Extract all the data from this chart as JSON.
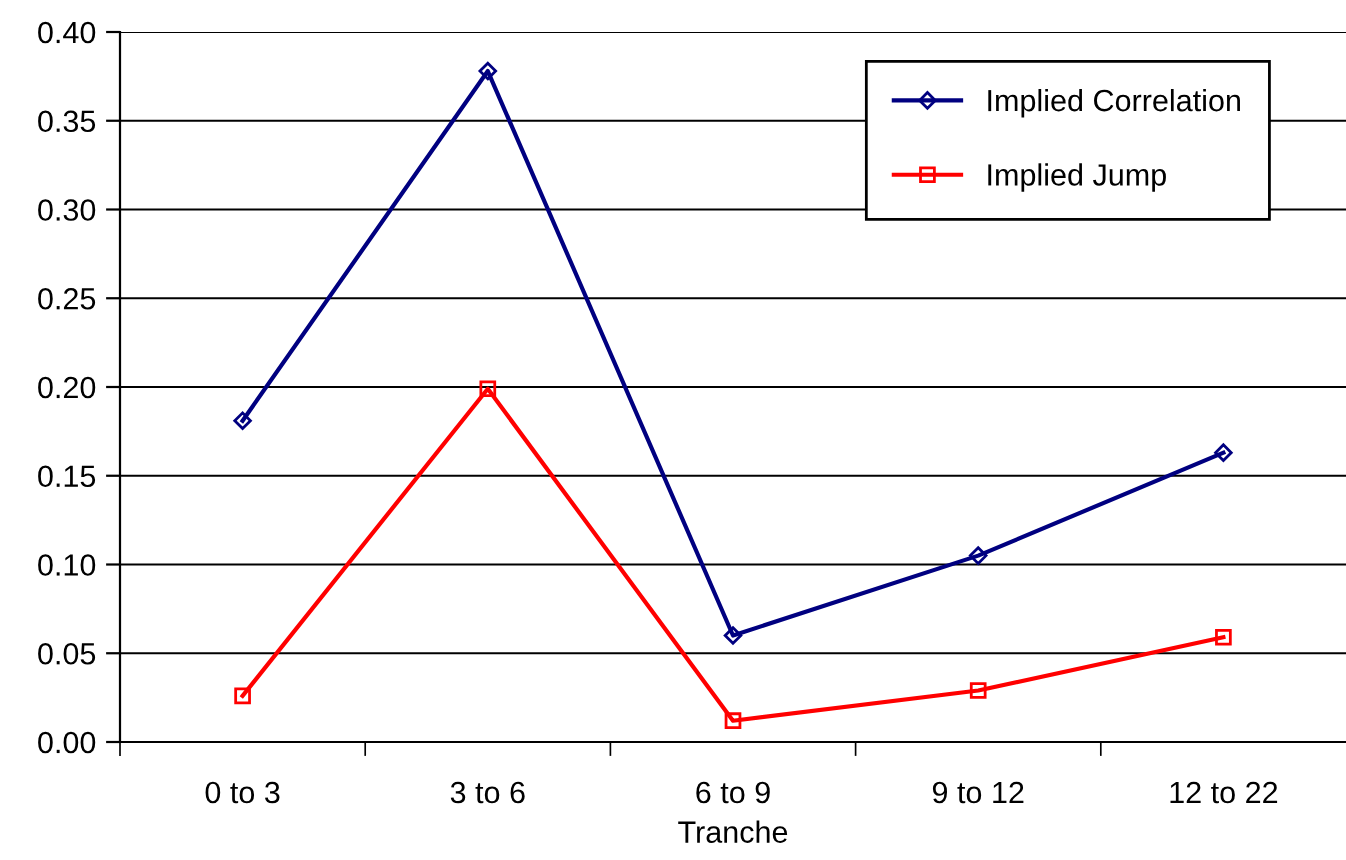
{
  "chart_data": {
    "type": "line",
    "xlabel": "Tranche",
    "categories": [
      "0 to 3",
      "3 to 6",
      "6 to 9",
      "9 to 12",
      "12 to 22"
    ],
    "series": [
      {
        "name": "Implied Correlation",
        "color": "#000080",
        "marker": "diamond",
        "values": [
          0.181,
          0.378,
          0.06,
          0.105,
          0.163
        ]
      },
      {
        "name": "Implied Jump",
        "color": "#ff0000",
        "marker": "square",
        "values": [
          0.026,
          0.199,
          0.012,
          0.029,
          0.059
        ]
      }
    ],
    "ylim": [
      0,
      0.4
    ],
    "yticks": [
      {
        "value": 0,
        "label": "0.00"
      },
      {
        "value": 0.05,
        "label": "0.05"
      },
      {
        "value": 0.1,
        "label": "0.10"
      },
      {
        "value": 0.15,
        "label": "0.15"
      },
      {
        "value": 0.2,
        "label": "0.20"
      },
      {
        "value": 0.25,
        "label": "0.25"
      },
      {
        "value": 0.3,
        "label": "0.30"
      },
      {
        "value": 0.35,
        "label": "0.35"
      },
      {
        "value": 0.4,
        "label": "0.40"
      }
    ],
    "grid": "y",
    "legend": "top right",
    "line_style": "solid"
  }
}
